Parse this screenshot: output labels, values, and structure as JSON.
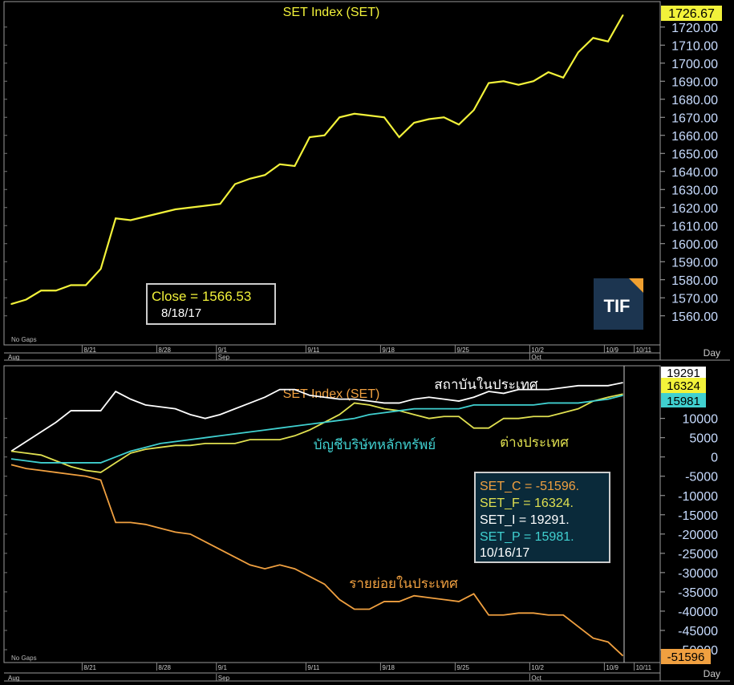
{
  "colors": {
    "background": "#000000",
    "frame": "#9a9a9a",
    "set_index": "#f2f23a",
    "retail": "#f0a040",
    "institutional": "#ffffff",
    "proprietary": "#40d0d0",
    "foreign": "#e0e050",
    "infobox_bg": "#0a2a3a"
  },
  "chart_data": [
    {
      "type": "line",
      "title": "SET  Index  (SET)",
      "ylim": [
        1555,
        1727
      ],
      "yticks": [
        "1560.00",
        "1570.00",
        "1580.00",
        "1590.00",
        "1600.00",
        "1610.00",
        "1620.00",
        "1630.00",
        "1640.00",
        "1650.00",
        "1660.00",
        "1670.00",
        "1680.00",
        "1690.00",
        "1700.00",
        "1710.00",
        "1720.00"
      ],
      "ytick_values": [
        1560,
        1570,
        1580,
        1590,
        1600,
        1610,
        1620,
        1630,
        1640,
        1650,
        1660,
        1670,
        1680,
        1690,
        1700,
        1710,
        1720
      ],
      "xlabel": "Day",
      "xticks": [
        {
          "label": "8/21",
          "i": 4
        },
        {
          "label": "8/28",
          "i": 9
        },
        {
          "label": "9/1",
          "i": 13
        },
        {
          "label": "9/11",
          "i": 19
        },
        {
          "label": "9/18",
          "i": 24
        },
        {
          "label": "9/25",
          "i": 29
        },
        {
          "label": "10/2",
          "i": 34
        },
        {
          "label": "10/9",
          "i": 39
        },
        {
          "label": "10/11",
          "i": 41
        }
      ],
      "month_labels": [
        {
          "label": "Aug",
          "i": 0
        },
        {
          "label": "Sep",
          "i": 13
        },
        {
          "label": "Oct",
          "i": 34
        }
      ],
      "no_gaps": "No Gaps",
      "last_value_label": "1726.67",
      "series": [
        {
          "values": [
            1566.53,
            1569,
            1574,
            1574,
            1577,
            1577,
            1586,
            1614,
            1613,
            1615,
            1617,
            1619,
            1620,
            1621,
            1622,
            1633,
            1636,
            1638,
            1644,
            1643,
            1659,
            1660,
            1670,
            1672,
            1671,
            1670,
            1659,
            1667,
            1669,
            1670,
            1666,
            1674,
            1689,
            1690,
            1688,
            1690,
            1695,
            1692,
            1706,
            1714,
            1712,
            1726.67
          ]
        }
      ],
      "infobox": {
        "line1": "Close  =  1566.53",
        "line2": "8/18/17"
      },
      "logo": "TIF"
    },
    {
      "type": "line",
      "title": "SET  Index  (SET)",
      "ylim": [
        -52500,
        22000
      ],
      "yticks": [
        "10000",
        "5000",
        "0",
        "-5000",
        "-10000",
        "-15000",
        "-20000",
        "-25000",
        "-30000",
        "-35000",
        "-40000",
        "-45000",
        "-50000"
      ],
      "ytick_values": [
        10000,
        5000,
        0,
        -5000,
        -10000,
        -15000,
        -20000,
        -25000,
        -30000,
        -35000,
        -40000,
        -45000,
        -50000
      ],
      "xlabel": "Day",
      "series": [
        {
          "name": "สถาบันในประเทศ",
          "key": "institutional",
          "last_label": "19291",
          "values": [
            1500,
            4000,
            6500,
            9000,
            12000,
            12000,
            12000,
            17000,
            15000,
            13500,
            13000,
            12500,
            11000,
            10000,
            11000,
            12500,
            14000,
            15500,
            17500,
            17500,
            16000,
            15500,
            15000,
            15000,
            14500,
            14000,
            14000,
            15000,
            15500,
            15000,
            14500,
            15500,
            17000,
            16500,
            17500,
            17500,
            17500,
            18000,
            18500,
            18500,
            18500,
            19291
          ]
        },
        {
          "name": "ต่างประเทศ",
          "key": "foreign",
          "last_label": "16324",
          "values": [
            1500,
            1000,
            500,
            -1000,
            -2500,
            -3500,
            -4000,
            -1500,
            1000,
            2000,
            2500,
            3000,
            3000,
            3500,
            3500,
            3500,
            4500,
            4500,
            4500,
            5500,
            7000,
            9000,
            11000,
            14000,
            13500,
            12500,
            12000,
            11000,
            10000,
            10500,
            10500,
            7500,
            7500,
            10000,
            10000,
            10500,
            10500,
            11500,
            12500,
            14500,
            15500,
            16324
          ]
        },
        {
          "name": "บัญชีบริษัทหลักทรัพย์",
          "key": "proprietary",
          "last_label": "15981",
          "values": [
            -500,
            -1000,
            -1500,
            -1500,
            -1500,
            -1500,
            -1500,
            0,
            1500,
            2500,
            3500,
            4000,
            4500,
            5000,
            5500,
            6000,
            6500,
            7000,
            7500,
            8000,
            8500,
            9000,
            9500,
            10000,
            11000,
            11500,
            12000,
            12500,
            12500,
            12500,
            12500,
            13500,
            13500,
            13500,
            13500,
            13500,
            14000,
            14000,
            14000,
            14500,
            15000,
            15981
          ]
        },
        {
          "name": "รายย่อยในประเทศ",
          "key": "retail",
          "last_label": "-51596",
          "values": [
            -2000,
            -3000,
            -3500,
            -4000,
            -4500,
            -5000,
            -6000,
            -17000,
            -17000,
            -17500,
            -18500,
            -19500,
            -20000,
            -22000,
            -24000,
            -26000,
            -28000,
            -29000,
            -28000,
            -29000,
            -31000,
            -33000,
            -37000,
            -39500,
            -39500,
            -37500,
            -37500,
            -36000,
            -36500,
            -37000,
            -37500,
            -35500,
            -41000,
            -41000,
            -40500,
            -40500,
            -41000,
            -41000,
            -44000,
            -47000,
            -48000,
            -51596
          ]
        }
      ],
      "infobox": {
        "line_c": "SET_C  =  -51596.",
        "line_f": "SET_F  =  16324.",
        "line_i": "SET_I  =  19291.",
        "line_p": "SET_P  =  15981.",
        "date": "10/16/17"
      }
    }
  ]
}
